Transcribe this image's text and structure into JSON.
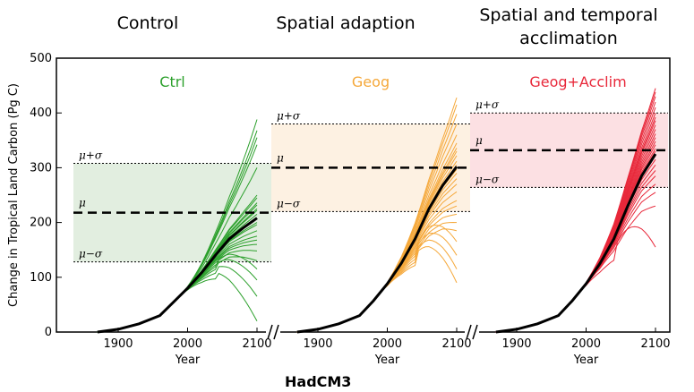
{
  "titles": [
    "Control",
    "Spatial adaption",
    "Spatial and temporal acclimation"
  ],
  "source_label": "HadCM3",
  "chart_data": [
    {
      "type": "line",
      "panel": "Control",
      "model_name": "Ctrl",
      "color": "#2ca02c",
      "band_color": "#e2eee0",
      "xlabel": "Year",
      "ylabel": "Change in Tropical Land Carbon (Pg C)",
      "xlim": [
        1820,
        2125
      ],
      "ylim": [
        0,
        500
      ],
      "xticks": [
        1900,
        2000,
        2100
      ],
      "yticks": [
        0,
        100,
        200,
        300,
        400,
        500
      ],
      "stats": {
        "mean": 218,
        "plus_sigma": 308,
        "minus_sigma": 128
      },
      "stat_labels": {
        "plus": "μ+σ",
        "mean": "μ",
        "minus": "μ−σ"
      },
      "mean_curve": {
        "x": [
          1870,
          1900,
          1930,
          1960,
          1980,
          2000,
          2020,
          2040,
          2060,
          2080,
          2100
        ],
        "y": [
          0,
          5,
          15,
          30,
          55,
          80,
          108,
          140,
          170,
          190,
          208
        ]
      },
      "ensemble_2100": [
        388,
        368,
        355,
        342,
        300,
        250,
        245,
        236,
        232,
        225,
        222,
        215,
        208,
        200,
        196,
        185,
        175,
        168,
        160,
        148,
        130,
        115,
        95,
        65,
        20
      ]
    },
    {
      "type": "line",
      "panel": "Spatial adaption",
      "model_name": "Geog",
      "color": "#f5a83a",
      "band_color": "#fdf1e2",
      "xlabel": "Year",
      "ylabel": "",
      "xlim": [
        1820,
        2125
      ],
      "ylim": [
        0,
        500
      ],
      "xticks": [
        1900,
        2000,
        2100
      ],
      "yticks": [],
      "stats": {
        "mean": 300,
        "plus_sigma": 380,
        "minus_sigma": 220
      },
      "stat_labels": {
        "plus": "μ+σ",
        "mean": "μ",
        "minus": "μ−σ"
      },
      "mean_curve": {
        "x": [
          1870,
          1900,
          1930,
          1960,
          1980,
          2000,
          2020,
          2040,
          2060,
          2080,
          2100
        ],
        "y": [
          0,
          5,
          15,
          30,
          57,
          88,
          125,
          170,
          225,
          268,
          302
        ]
      },
      "ensemble_2100": [
        428,
        415,
        398,
        380,
        360,
        345,
        336,
        330,
        322,
        312,
        305,
        297,
        290,
        280,
        270,
        256,
        240,
        230,
        215,
        200,
        185,
        165,
        140,
        115,
        90
      ]
    },
    {
      "type": "line",
      "panel": "Spatial and temporal acclimation",
      "model_name": "Geog+Acclim",
      "color": "#e8283a",
      "band_color": "#fce0e3",
      "xlabel": "Year",
      "ylabel": "",
      "xlim": [
        1820,
        2125
      ],
      "ylim": [
        0,
        500
      ],
      "xticks": [
        1900,
        2000,
        2100
      ],
      "yticks": [],
      "stats": {
        "mean": 332,
        "plus_sigma": 400,
        "minus_sigma": 264
      },
      "stat_labels": {
        "plus": "μ+σ",
        "mean": "μ",
        "minus": "μ−σ"
      },
      "mean_curve": {
        "x": [
          1870,
          1900,
          1930,
          1960,
          1980,
          2000,
          2020,
          2040,
          2060,
          2080,
          2100
        ],
        "y": [
          0,
          5,
          15,
          30,
          57,
          88,
          125,
          170,
          230,
          285,
          325
        ]
      },
      "ensemble_2100": [
        445,
        438,
        430,
        420,
        410,
        400,
        392,
        386,
        378,
        370,
        362,
        355,
        348,
        342,
        335,
        330,
        322,
        315,
        305,
        295,
        285,
        270,
        255,
        230,
        155
      ]
    }
  ]
}
